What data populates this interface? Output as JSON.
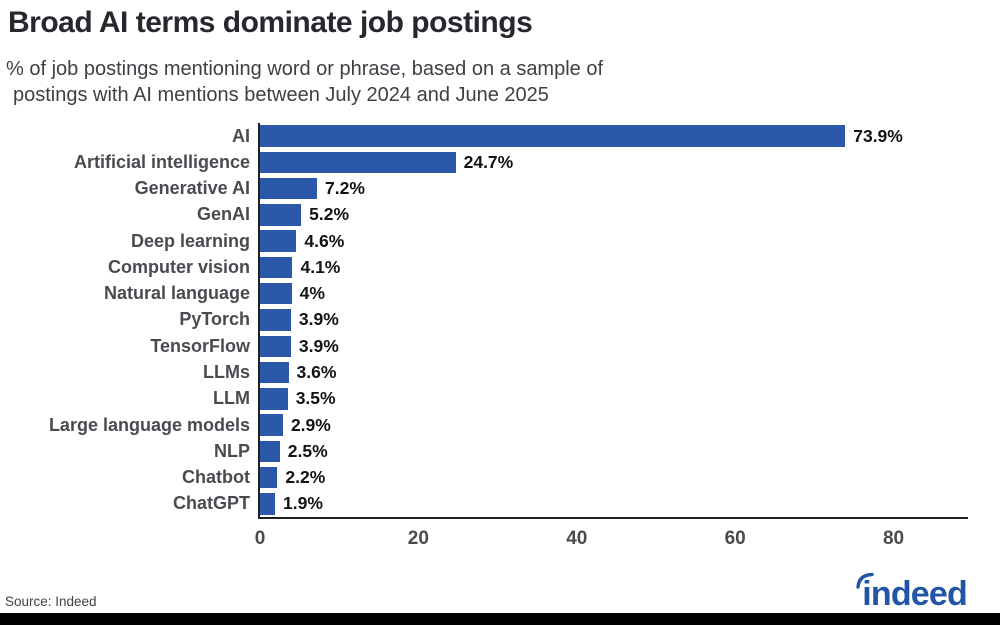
{
  "header": {
    "title": "Broad AI terms dominate job postings",
    "subtitle_line1": "% of job postings mentioning word or phrase, based on a sample of",
    "subtitle_line2": "postings with AI mentions between July 2024 and June 2025"
  },
  "chart_data": {
    "type": "bar",
    "orientation": "horizontal",
    "title": "Broad AI terms dominate job postings",
    "xlabel": "",
    "ylabel": "",
    "categories": [
      "AI",
      "Artificial intelligence",
      "Generative AI",
      "GenAI",
      "Deep learning",
      "Computer vision",
      "Natural language",
      "PyTorch",
      "TensorFlow",
      "LLMs",
      "LLM",
      "Large language models",
      "NLP",
      "Chatbot",
      "ChatGPT"
    ],
    "values": [
      73.9,
      24.7,
      7.2,
      5.2,
      4.6,
      4.1,
      4.0,
      3.9,
      3.9,
      3.6,
      3.5,
      2.9,
      2.5,
      2.2,
      1.9
    ],
    "value_labels": [
      "73.9%",
      "24.7%",
      "7.2%",
      "5.2%",
      "4.6%",
      "4.1%",
      "4%",
      "3.9%",
      "3.9%",
      "3.6%",
      "3.5%",
      "2.9%",
      "2.5%",
      "2.2%",
      "1.9%"
    ],
    "x_ticks": [
      0,
      20,
      40,
      60,
      80
    ],
    "xlim": [
      0,
      89.4
    ],
    "grid": false,
    "legend": null,
    "bar_color": "#2b58a8"
  },
  "footer": {
    "source": "Source: Indeed",
    "logo_text": "indeed"
  },
  "colors": {
    "bar": "#2b58a8",
    "title": "#26282e",
    "subtitle": "#3d4045",
    "category_label": "#4a4b50",
    "value_label": "#121316",
    "axis": "#1f2022",
    "tick_label": "#4a4b50",
    "logo_blue": "#2355a5",
    "bottom_bar": "#000000"
  }
}
